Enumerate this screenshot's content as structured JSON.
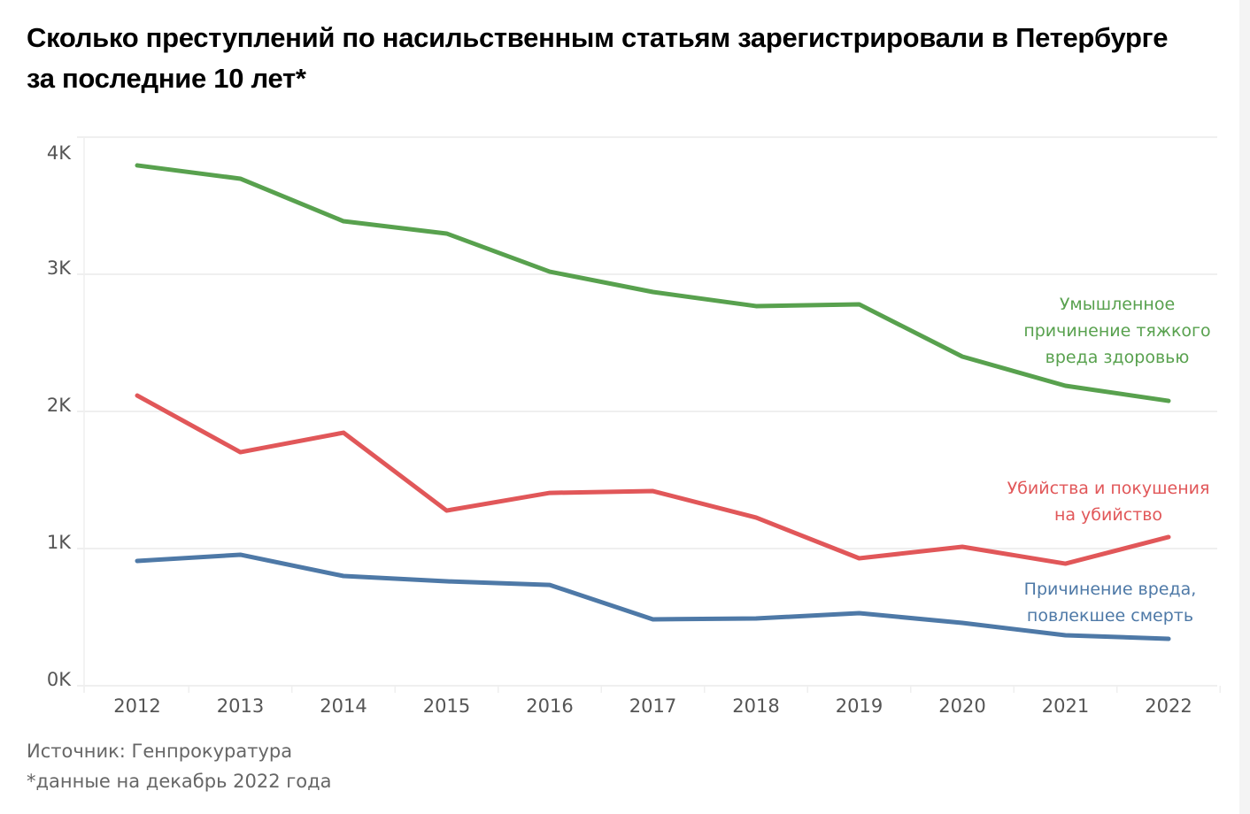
{
  "title": "Сколько преступлений по насильственным статьям зарегистрировали в Петербурге за последние 10 лет*",
  "footer": {
    "source": "Источник: Генпрокуратура",
    "note": "*данные на декабрь 2022 года"
  },
  "chart_data": {
    "type": "line",
    "title": "Сколько преступлений по насильственным статьям зарегистрировали в Петербурге за последние 10 лет*",
    "xlabel": "",
    "ylabel": "",
    "x": [
      "2012",
      "2013",
      "2014",
      "2015",
      "2016",
      "2017",
      "2018",
      "2019",
      "2020",
      "2021",
      "2022"
    ],
    "ylim": [
      0,
      4000
    ],
    "yticks": [
      0,
      1000,
      2000,
      3000,
      4000
    ],
    "ytick_labels": [
      "0K",
      "1K",
      "2K",
      "3K",
      "4K"
    ],
    "grid": true,
    "legend": "inline-right",
    "series": [
      {
        "name": "Умышленное причинение тяжкого вреда здоровью",
        "label_lines": [
          "Умышленное",
          "причинение тяжкого",
          "вреда здоровью"
        ],
        "color": "#58a14e",
        "values": [
          3794,
          3697,
          3387,
          3297,
          3019,
          2871,
          2768,
          2781,
          2400,
          2187,
          2077
        ]
      },
      {
        "name": "Убийства и покушения на убийство",
        "label_lines": [
          "Убийства и покушения",
          "на убийство"
        ],
        "color": "#e15759",
        "values": [
          2116,
          1703,
          1845,
          1277,
          1406,
          1419,
          1226,
          929,
          1013,
          890,
          1084
        ]
      },
      {
        "name": "Причинение вреда, повлекшее смерть",
        "label_lines": [
          "Причинение вреда,",
          "повлекшее смерть"
        ],
        "color": "#4e79a7",
        "values": [
          910,
          955,
          800,
          761,
          735,
          484,
          490,
          529,
          458,
          368,
          342
        ]
      }
    ]
  }
}
